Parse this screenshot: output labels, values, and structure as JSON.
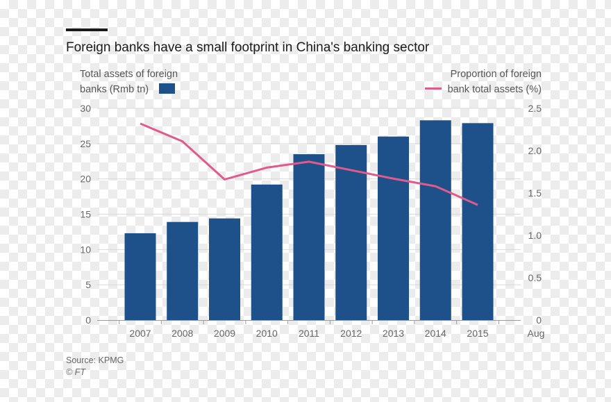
{
  "chart_data": {
    "type": "bar",
    "title": "Foreign banks have a small footprint in China's banking sector",
    "legend": {
      "bar_line1": "Total assets of foreign",
      "bar_line2": "banks (Rmb tn)",
      "line_line1": "Proportion of foreign",
      "line_line2": "bank total assets (%)"
    },
    "categories": [
      "2007",
      "2008",
      "2009",
      "2010",
      "2011",
      "2012",
      "2013",
      "2014",
      "2015"
    ],
    "extra_tick_label": "Aug",
    "series": [
      {
        "type": "bar",
        "axis": "left",
        "color": "#1e5189",
        "values": [
          12.3,
          13.9,
          14.4,
          19.2,
          23.5,
          24.8,
          26.0,
          28.3,
          27.9
        ]
      },
      {
        "type": "line",
        "axis": "right",
        "color": "#e05a8c",
        "values": [
          2.32,
          2.11,
          1.66,
          1.8,
          1.87,
          1.77,
          1.67,
          1.58,
          1.36
        ]
      }
    ],
    "y_left": {
      "min": 0,
      "max": 30,
      "ticks": [
        "0",
        "5",
        "10",
        "15",
        "20",
        "25",
        "30"
      ]
    },
    "y_right": {
      "min": 0,
      "max": 2.5,
      "ticks": [
        "0",
        "0.5",
        "1.0",
        "1.5",
        "2.0",
        "2.5"
      ]
    },
    "grid": true,
    "source": "Source: KPMG",
    "credit": "© FT"
  },
  "colors": {
    "bar": "#1e5189",
    "line": "#e05a8c",
    "grid": "#d9d9d9",
    "axis": "#999999"
  }
}
